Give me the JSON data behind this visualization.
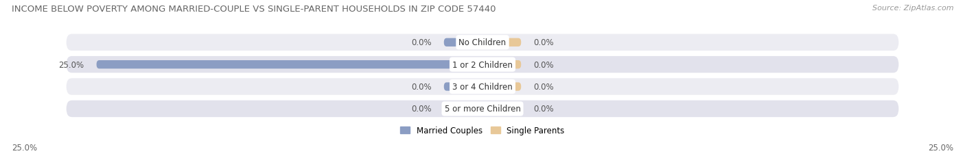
{
  "title": "INCOME BELOW POVERTY AMONG MARRIED-COUPLE VS SINGLE-PARENT HOUSEHOLDS IN ZIP CODE 57440",
  "source": "Source: ZipAtlas.com",
  "categories": [
    "No Children",
    "1 or 2 Children",
    "3 or 4 Children",
    "5 or more Children"
  ],
  "married_values": [
    0.0,
    25.0,
    0.0,
    0.0
  ],
  "single_values": [
    0.0,
    0.0,
    0.0,
    0.0
  ],
  "max_val": 25.0,
  "married_color": "#8B9DC3",
  "single_color": "#E8C898",
  "row_bg_color_1": "#ECECF2",
  "row_bg_color_2": "#E2E2EC",
  "title_fontsize": 9.5,
  "source_fontsize": 8,
  "label_fontsize": 8.5,
  "category_fontsize": 8.5,
  "legend_married": "Married Couples",
  "legend_single": "Single Parents",
  "axis_label_left": "25.0%",
  "axis_label_right": "25.0%"
}
